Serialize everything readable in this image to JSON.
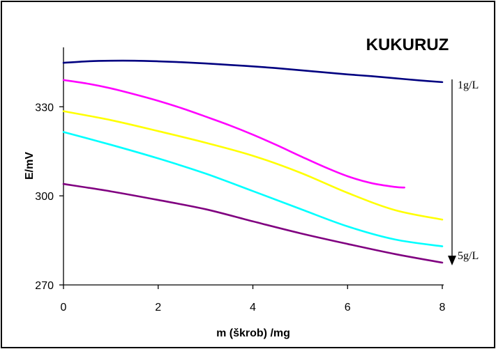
{
  "chart_data": {
    "type": "line",
    "title": "KUKURUZ",
    "xlabel": "m (škrob) /mg",
    "ylabel": "E/mV",
    "xlim": [
      0,
      8
    ],
    "ylim": [
      270,
      350
    ],
    "x_ticks": [
      "0",
      "2",
      "4",
      "6",
      "8"
    ],
    "y_ticks": [
      "270",
      "300",
      "330"
    ],
    "grid": false,
    "legend": "none",
    "series": [
      {
        "color": "#000080",
        "x": [
          0,
          0.5,
          1,
          1.5,
          2,
          2.5,
          3,
          3.5,
          4,
          4.5,
          5,
          5.5,
          6,
          6.5,
          7,
          7.5,
          8
        ],
        "values": [
          344.8,
          345.3,
          345.5,
          345.5,
          345.3,
          345.0,
          344.6,
          344.1,
          343.6,
          343.0,
          342.3,
          341.6,
          340.9,
          340.3,
          339.6,
          338.9,
          338.3
        ]
      },
      {
        "color": "#ff00ff",
        "x": [
          0,
          0.5,
          1,
          1.5,
          2,
          2.5,
          3,
          3.5,
          4,
          4.5,
          5,
          5.5,
          6,
          6.5,
          7,
          7.2
        ],
        "values": [
          339.0,
          337.8,
          336.2,
          334.2,
          332.0,
          329.5,
          326.7,
          323.8,
          320.6,
          317.1,
          313.4,
          309.8,
          306.6,
          304.3,
          303.0,
          302.8
        ]
      },
      {
        "color": "#ffff00",
        "x": [
          0,
          1,
          2,
          3,
          4,
          5,
          6,
          7,
          8
        ],
        "values": [
          328.5,
          325.5,
          321.8,
          317.9,
          313.5,
          307.8,
          301.0,
          295.2,
          292.0
        ]
      },
      {
        "color": "#00ffff",
        "x": [
          0,
          1,
          2,
          3,
          4,
          5,
          6,
          7,
          8
        ],
        "values": [
          321.5,
          317.2,
          312.6,
          307.5,
          301.6,
          295.6,
          289.7,
          285.3,
          283.0
        ]
      },
      {
        "color": "#800080",
        "x": [
          0,
          1,
          2,
          3,
          4,
          5,
          6,
          7,
          8
        ],
        "values": [
          304.0,
          301.5,
          298.6,
          295.5,
          291.4,
          287.4,
          283.8,
          280.4,
          277.5
        ]
      }
    ],
    "annotations": {
      "top": "1g/L",
      "bottom": "5g/L"
    }
  }
}
